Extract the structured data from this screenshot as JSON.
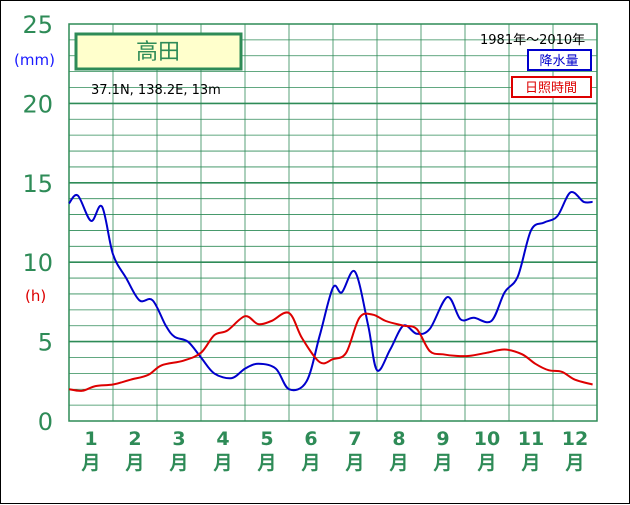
{
  "chart_data": {
    "type": "line",
    "title": "高田",
    "location": "37.1N,  138.2E,  13m",
    "period": "1981年～2010年",
    "ylabel_left": "(mm)",
    "ylabel_right": "(h)",
    "yticks": [
      "0",
      "5",
      "10",
      "15",
      "20",
      "25"
    ],
    "ylim": [
      0,
      25
    ],
    "month_numbers": [
      "1",
      "2",
      "3",
      "4",
      "5",
      "6",
      "7",
      "8",
      "9",
      "10",
      "11",
      "12"
    ],
    "month_unit": "月",
    "legend": [
      {
        "label": "降水量",
        "color": "#0000cc"
      },
      {
        "label": "日照時間",
        "color": "#dd0000"
      }
    ],
    "series": [
      {
        "name": "降水量",
        "color": "#0000cc",
        "x": [
          0,
          0.2,
          0.5,
          0.75,
          1.0,
          1.3,
          1.6,
          1.9,
          2.2,
          2.4,
          2.7,
          3.0,
          3.3,
          3.7,
          4.0,
          4.3,
          4.7,
          5.0,
          5.4,
          5.7,
          6.0,
          6.2,
          6.5,
          6.8,
          7.0,
          7.3,
          7.6,
          7.9,
          8.2,
          8.6,
          8.9,
          9.2,
          9.6,
          9.9,
          10.2,
          10.5,
          10.8,
          11.1,
          11.4,
          11.7,
          11.9
        ],
        "y": [
          13.7,
          14.2,
          12.6,
          13.5,
          10.5,
          9.0,
          7.6,
          7.6,
          6.0,
          5.3,
          5.0,
          4.0,
          3.0,
          2.7,
          3.3,
          3.6,
          3.3,
          2.0,
          2.5,
          5.4,
          8.4,
          8.1,
          9.4,
          6.0,
          3.2,
          4.5,
          6.0,
          5.5,
          5.8,
          7.8,
          6.4,
          6.5,
          6.3,
          8.1,
          9.1,
          12.0,
          12.5,
          12.9,
          14.4,
          13.8,
          13.8
        ]
      },
      {
        "name": "日照時間",
        "color": "#dd0000",
        "x": [
          0,
          0.3,
          0.6,
          1.0,
          1.4,
          1.8,
          2.1,
          2.6,
          3.0,
          3.3,
          3.6,
          4.0,
          4.3,
          4.6,
          5.0,
          5.3,
          5.7,
          6.0,
          6.3,
          6.6,
          6.9,
          7.2,
          7.6,
          7.9,
          8.2,
          8.5,
          8.8,
          9.1,
          9.5,
          9.9,
          10.3,
          10.6,
          10.9,
          11.2,
          11.5,
          11.9
        ],
        "y": [
          2.0,
          1.9,
          2.2,
          2.3,
          2.6,
          2.9,
          3.5,
          3.8,
          4.3,
          5.4,
          5.7,
          6.6,
          6.1,
          6.3,
          6.8,
          5.2,
          3.7,
          3.9,
          4.3,
          6.5,
          6.7,
          6.3,
          6.0,
          5.8,
          4.4,
          4.2,
          4.1,
          4.1,
          4.3,
          4.5,
          4.2,
          3.6,
          3.2,
          3.1,
          2.6,
          2.3
        ]
      }
    ]
  }
}
